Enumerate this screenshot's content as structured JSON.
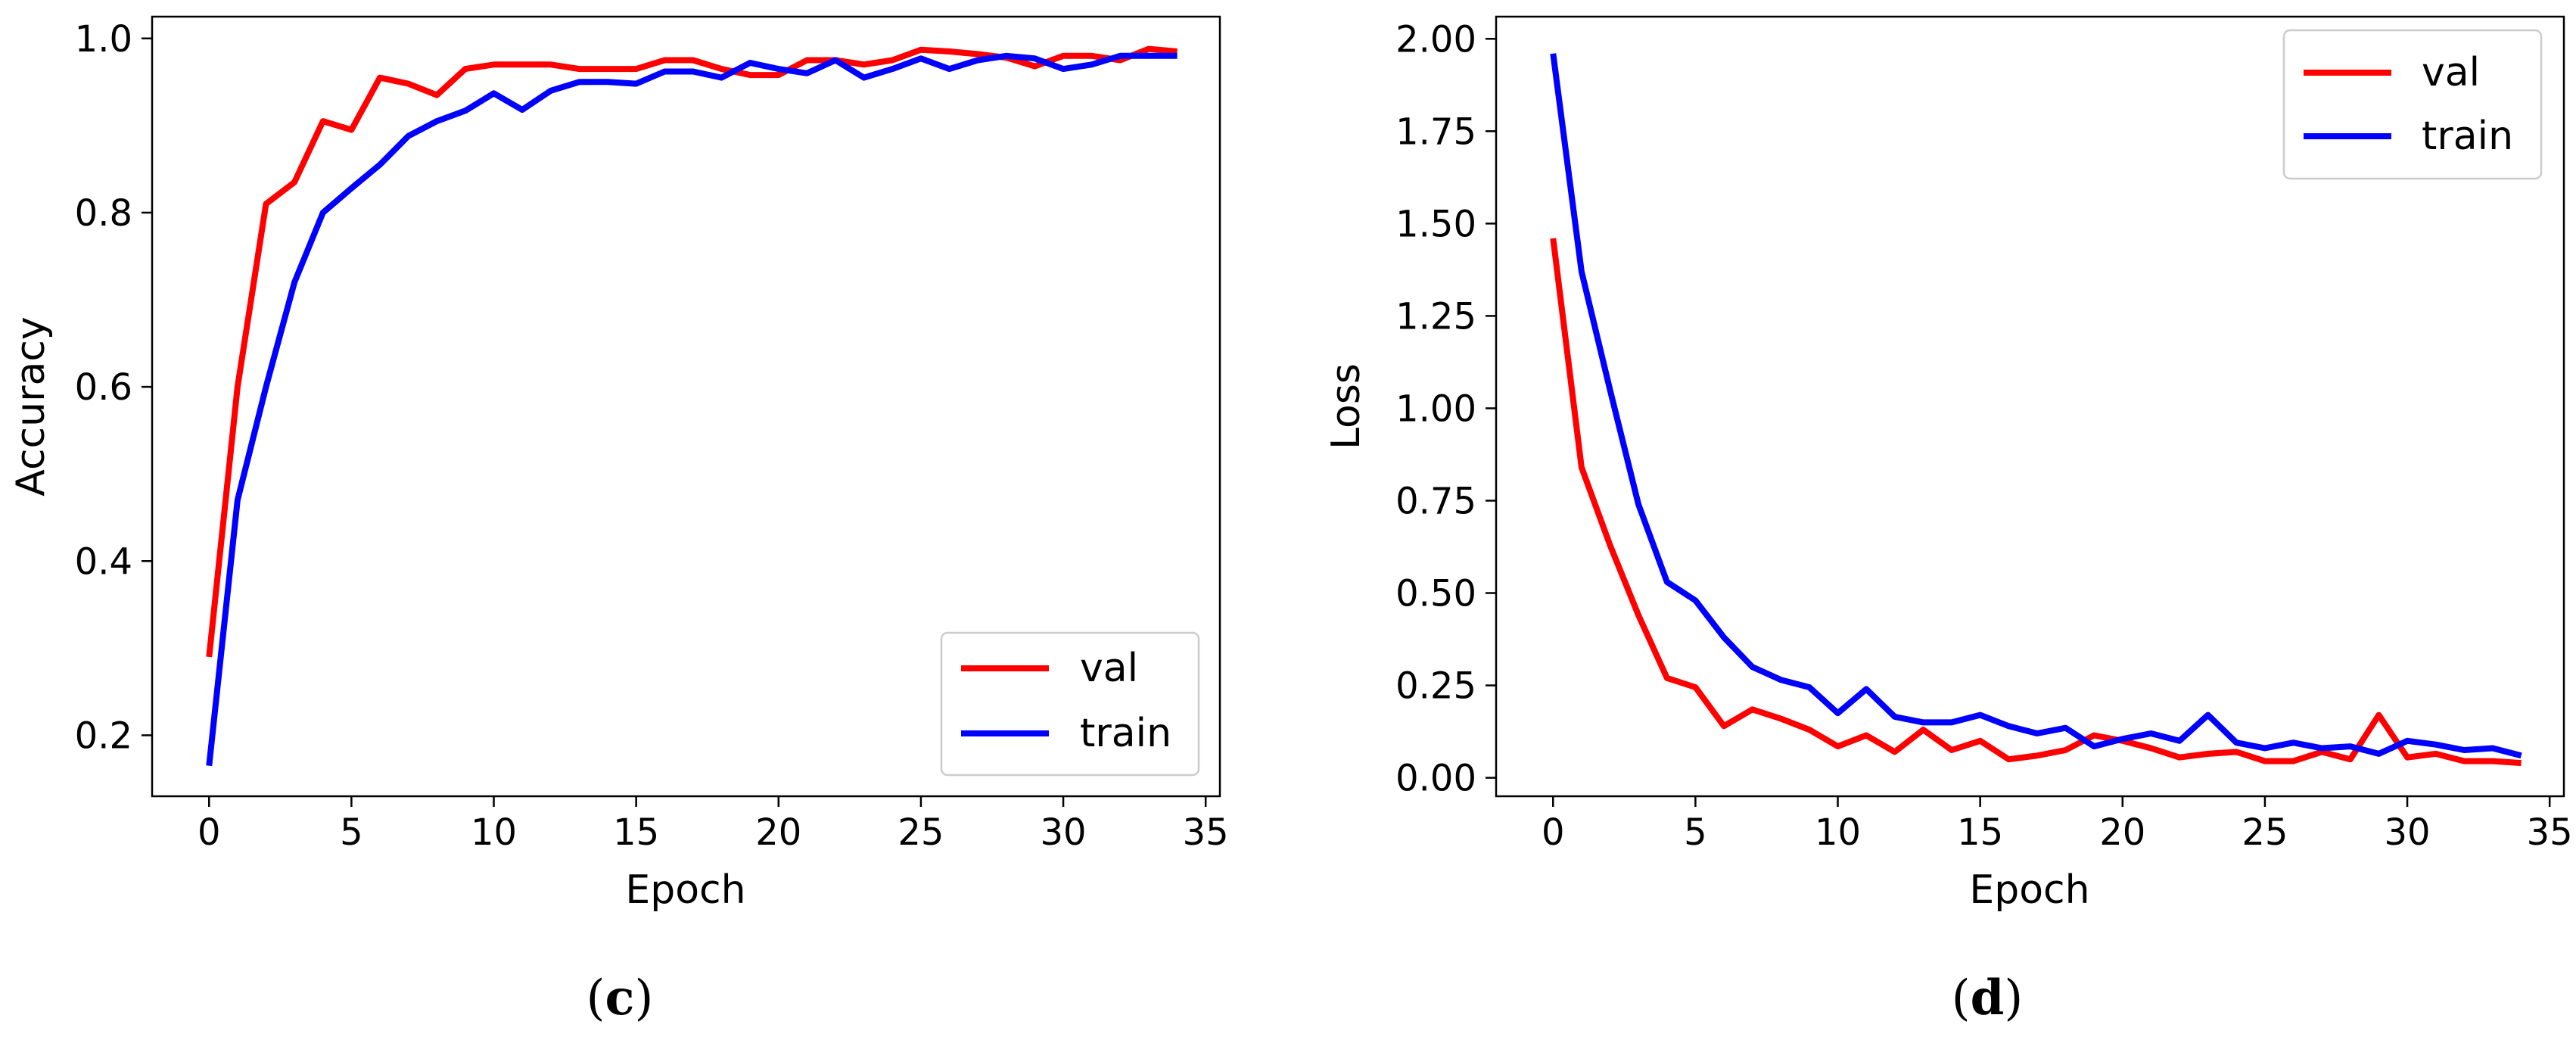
{
  "colors": {
    "val": "#ff0000",
    "train": "#0000ff"
  },
  "chart_data": [
    {
      "type": "line",
      "panel": "c",
      "caption": "c",
      "xlabel": "Epoch",
      "ylabel": "Accuracy",
      "xlim": [
        -2,
        35.5
      ],
      "ylim": [
        0.13,
        1.025
      ],
      "xticks": [
        0,
        5,
        10,
        15,
        20,
        25,
        30,
        35
      ],
      "xtick_labels": [
        "0",
        "5",
        "10",
        "15",
        "20",
        "25",
        "30",
        "35"
      ],
      "yticks": [
        0.2,
        0.4,
        0.6,
        0.8,
        1.0
      ],
      "ytick_labels": [
        "0.2",
        "0.4",
        "0.6",
        "0.8",
        "1.0"
      ],
      "legend_position": "bottom-right",
      "x": [
        0,
        1,
        2,
        3,
        4,
        5,
        6,
        7,
        8,
        9,
        10,
        11,
        12,
        13,
        14,
        15,
        16,
        17,
        18,
        19,
        20,
        21,
        22,
        23,
        24,
        25,
        26,
        27,
        28,
        29,
        30,
        31,
        32,
        33,
        34
      ],
      "series": [
        {
          "name": "val",
          "color": "#ff0000",
          "values": [
            0.29,
            0.6,
            0.81,
            0.835,
            0.905,
            0.895,
            0.955,
            0.948,
            0.935,
            0.965,
            0.97,
            0.97,
            0.97,
            0.965,
            0.965,
            0.965,
            0.975,
            0.975,
            0.965,
            0.958,
            0.958,
            0.975,
            0.975,
            0.97,
            0.975,
            0.987,
            0.985,
            0.982,
            0.978,
            0.968,
            0.98,
            0.98,
            0.975,
            0.988,
            0.985
          ]
        },
        {
          "name": "train",
          "color": "#0000ff",
          "values": [
            0.165,
            0.47,
            0.6,
            0.72,
            0.8,
            0.828,
            0.855,
            0.888,
            0.905,
            0.917,
            0.937,
            0.918,
            0.94,
            0.95,
            0.95,
            0.948,
            0.962,
            0.962,
            0.955,
            0.972,
            0.965,
            0.96,
            0.975,
            0.955,
            0.965,
            0.977,
            0.965,
            0.975,
            0.98,
            0.977,
            0.965,
            0.97,
            0.98,
            0.98,
            0.98
          ]
        }
      ]
    },
    {
      "type": "line",
      "panel": "d",
      "caption": "d",
      "xlabel": "Epoch",
      "ylabel": "Loss",
      "xlim": [
        -2,
        35.5
      ],
      "ylim": [
        -0.05,
        2.06
      ],
      "xticks": [
        0,
        5,
        10,
        15,
        20,
        25,
        30,
        35
      ],
      "xtick_labels": [
        "0",
        "5",
        "10",
        "15",
        "20",
        "25",
        "30",
        "35"
      ],
      "yticks": [
        0,
        0.25,
        0.5,
        0.75,
        1.0,
        1.25,
        1.5,
        1.75,
        2.0
      ],
      "ytick_labels": [
        "0.00",
        "0.25",
        "0.50",
        "0.75",
        "1.00",
        "1.25",
        "1.50",
        "1.75",
        "2.00"
      ],
      "legend_position": "top-right",
      "x": [
        0,
        1,
        2,
        3,
        4,
        5,
        6,
        7,
        8,
        9,
        10,
        11,
        12,
        13,
        14,
        15,
        16,
        17,
        18,
        19,
        20,
        21,
        22,
        23,
        24,
        25,
        26,
        27,
        28,
        29,
        30,
        31,
        32,
        33,
        34
      ],
      "series": [
        {
          "name": "val",
          "color": "#ff0000",
          "values": [
            1.46,
            0.84,
            0.63,
            0.44,
            0.27,
            0.245,
            0.14,
            0.185,
            0.16,
            0.13,
            0.085,
            0.115,
            0.07,
            0.13,
            0.075,
            0.1,
            0.05,
            0.06,
            0.075,
            0.115,
            0.1,
            0.08,
            0.055,
            0.065,
            0.07,
            0.045,
            0.045,
            0.07,
            0.05,
            0.17,
            0.055,
            0.065,
            0.045,
            0.045,
            0.04
          ]
        },
        {
          "name": "train",
          "color": "#0000ff",
          "values": [
            1.96,
            1.37,
            1.05,
            0.74,
            0.53,
            0.48,
            0.38,
            0.3,
            0.265,
            0.245,
            0.175,
            0.24,
            0.165,
            0.15,
            0.15,
            0.17,
            0.14,
            0.12,
            0.135,
            0.085,
            0.105,
            0.12,
            0.1,
            0.17,
            0.095,
            0.08,
            0.095,
            0.08,
            0.085,
            0.065,
            0.1,
            0.09,
            0.075,
            0.08,
            0.06
          ]
        }
      ]
    }
  ]
}
